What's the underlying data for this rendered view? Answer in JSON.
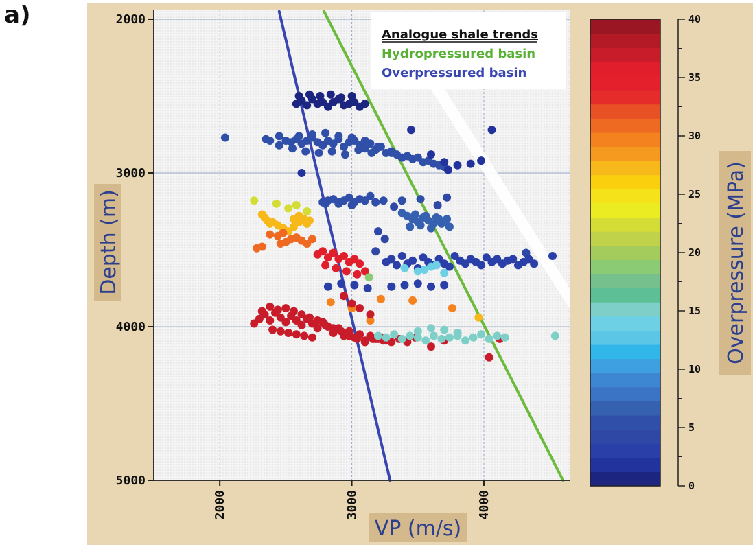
{
  "panel_label": "a)",
  "chart_data": {
    "type": "scatter",
    "title": "",
    "xlabel": "VP (m/s)",
    "ylabel": "Depth (m)",
    "xlim": [
      1500,
      4650
    ],
    "ylim": [
      5000,
      2000
    ],
    "x_ticks": [
      2000,
      3000,
      4000
    ],
    "y_ticks": [
      2000,
      3000,
      4000,
      5000
    ],
    "x_tick_labels": [
      "2000",
      "3000",
      "4000"
    ],
    "y_tick_labels": [
      "2000",
      "3000",
      "4000",
      "5000"
    ],
    "grid": true,
    "legend": {
      "placement": "top-center",
      "title": "Analogue shale trends",
      "entries": [
        {
          "name": "Hydropressured basin",
          "color": "#6dbb3c"
        },
        {
          "name": "Overpressured basin",
          "color": "#3a46b0"
        }
      ]
    },
    "trend_lines": [
      {
        "name": "Hydropressured basin",
        "color": "#6dbb3c",
        "points": [
          [
            2790,
            1950
          ],
          [
            4600,
            5000
          ]
        ]
      },
      {
        "name": "Overpressured basin",
        "color": "#3a46b0",
        "points": [
          [
            2450,
            1950
          ],
          [
            3290,
            5000
          ]
        ]
      }
    ],
    "colorbar": {
      "label": "Overpressure (MPa)",
      "min": 0,
      "max": 40,
      "ticks": [
        0,
        5,
        10,
        15,
        20,
        25,
        30,
        35,
        40
      ],
      "tick_labels": [
        "0",
        "5",
        "10",
        "15",
        "20",
        "25",
        "30",
        "35",
        "40"
      ],
      "colors": [
        "#1c2580",
        "#22339e",
        "#2b3fa8",
        "#2f48a6",
        "#304fa8",
        "#3660b0",
        "#3b74c4",
        "#3d86d2",
        "#3ea0e0",
        "#31b6ea",
        "#5bc6e6",
        "#6dd0e4",
        "#7ecfc8",
        "#5cbf96",
        "#76c08e",
        "#8acb74",
        "#a4cc5c",
        "#c0d24a",
        "#d4dc36",
        "#ecec22",
        "#f6e21a",
        "#fad00e",
        "#f7b81a",
        "#f59a1f",
        "#f3821f",
        "#ee6a22",
        "#e85026",
        "#e62c2a",
        "#e4202c",
        "#e01e2c",
        "#c81c2a",
        "#b41a26",
        "#9a1622"
      ]
    },
    "series": [
      {
        "name": "Depth ~2550 m cluster",
        "overpressure": 1,
        "x": [
          2580,
          2620,
          2660,
          2700,
          2740,
          2780,
          2820,
          2860,
          2900,
          2940,
          2980,
          3020,
          3060,
          3100,
          2600,
          2680,
          2760,
          2840,
          2920,
          3000
        ],
        "y": [
          2550,
          2530,
          2560,
          2520,
          2550,
          2540,
          2570,
          2540,
          2520,
          2560,
          2550,
          2540,
          2570,
          2550,
          2500,
          2490,
          2500,
          2490,
          2510,
          2500
        ]
      },
      {
        "name": "Depth ~2800 m cluster",
        "overpressure": 5,
        "x": [
          2040,
          2350,
          2380,
          2450,
          2500,
          2540,
          2580,
          2620,
          2660,
          2700,
          2740,
          2780,
          2820,
          2860,
          2900,
          2940,
          2980,
          3020,
          3060,
          3100,
          3140,
          3180,
          3220,
          3260,
          3300,
          3340,
          3380,
          3420,
          3460,
          3500,
          3540,
          3580,
          3620,
          3660,
          3700,
          2600,
          2700,
          2800,
          2900,
          3000,
          3100,
          3200,
          3300,
          2450,
          2550,
          2650,
          2750,
          2850,
          2950,
          3050,
          3150
        ],
        "y": [
          2770,
          2780,
          2790,
          2760,
          2790,
          2800,
          2780,
          2810,
          2790,
          2770,
          2800,
          2820,
          2790,
          2810,
          2780,
          2830,
          2800,
          2790,
          2820,
          2840,
          2810,
          2850,
          2830,
          2870,
          2860,
          2880,
          2900,
          2890,
          2910,
          2900,
          2930,
          2920,
          2940,
          2950,
          2960,
          2760,
          2750,
          2740,
          2760,
          2770,
          2790,
          2830,
          2870,
          2820,
          2840,
          2860,
          2870,
          2860,
          2880,
          2850,
          2870
        ]
      },
      {
        "name": "Deep blue scatter",
        "overpressure": 2,
        "x": [
          3450,
          3800,
          3900,
          3980,
          4060,
          3600,
          3700,
          2620,
          3730
        ],
        "y": [
          2720,
          2950,
          2940,
          2920,
          2720,
          2880,
          2930,
          3000,
          2980
        ]
      },
      {
        "name": "Depth ~3170 m cluster",
        "overpressure": 6,
        "x": [
          2780,
          2820,
          2860,
          2900,
          2940,
          2980,
          3020,
          3060,
          3100,
          3140,
          3180,
          2800,
          2900,
          3000,
          3100,
          3240,
          3380,
          3520
        ],
        "y": [
          3190,
          3180,
          3170,
          3190,
          3180,
          3160,
          3190,
          3170,
          3180,
          3150,
          3190,
          3200,
          3200,
          3210,
          3180,
          3180,
          3180,
          3170
        ]
      },
      {
        "name": "Mid-depth blue patch",
        "overpressure": 7,
        "x": [
          3420,
          3460,
          3500,
          3540,
          3580,
          3620,
          3660,
          3700,
          3440,
          3520,
          3600,
          3680,
          3740,
          3380,
          3480,
          3560,
          3640,
          3720
        ],
        "y": [
          3280,
          3300,
          3320,
          3290,
          3310,
          3330,
          3300,
          3320,
          3350,
          3340,
          3360,
          3330,
          3350,
          3260,
          3270,
          3280,
          3290,
          3300
        ]
      },
      {
        "name": "Scattered blue points",
        "overpressure": 4,
        "x": [
          3720,
          3320,
          3200,
          4320,
          3650,
          3180,
          3250
        ],
        "y": [
          3160,
          3220,
          3380,
          3520,
          3210,
          3510,
          3430
        ]
      },
      {
        "name": "Yellow-green",
        "overpressure": 22,
        "x": [
          2260,
          2430,
          2520,
          2580,
          2660
        ],
        "y": [
          3180,
          3200,
          3230,
          3210,
          3250
        ]
      },
      {
        "name": "Yellow",
        "overpressure": 27,
        "x": [
          2320,
          2340,
          2360,
          2380,
          2400,
          2440,
          2480,
          2520,
          2560,
          2600,
          2640,
          2660,
          2680,
          2600,
          2560
        ],
        "y": [
          3270,
          3290,
          3310,
          3330,
          3320,
          3340,
          3360,
          3380,
          3350,
          3320,
          3300,
          3330,
          3310,
          3280,
          3300
        ]
      },
      {
        "name": "Orange",
        "overpressure": 31,
        "x": [
          2280,
          2320,
          2460,
          2500,
          2540,
          2580,
          2620,
          2660,
          2700,
          2380,
          2440,
          2480
        ],
        "y": [
          3490,
          3480,
          3460,
          3450,
          3430,
          3420,
          3440,
          3460,
          3430,
          3400,
          3410,
          3390
        ]
      },
      {
        "name": "Red ~3550",
        "overpressure": 36,
        "x": [
          2740,
          2780,
          2820,
          2860,
          2900,
          2940,
          2980,
          3020,
          3060,
          2800,
          2880,
          2960,
          3040,
          3100
        ],
        "y": [
          3530,
          3510,
          3550,
          3520,
          3560,
          3540,
          3580,
          3560,
          3590,
          3600,
          3620,
          3640,
          3660,
          3640
        ]
      },
      {
        "name": "Dark blue ~3600",
        "overpressure": 3,
        "x": [
          3260,
          3300,
          3340,
          3380,
          3420,
          3460,
          3500,
          3540,
          3580,
          3620,
          3660,
          3700,
          3740,
          3780,
          3820,
          3860,
          3900,
          3940,
          3980,
          4020,
          4060,
          4100,
          4140,
          4180,
          4220,
          4260,
          4300,
          4340,
          4380,
          4520,
          3300,
          3400,
          3500,
          3600,
          3700,
          2820,
          2920,
          3020,
          3120
        ],
        "y": [
          3580,
          3560,
          3600,
          3540,
          3590,
          3570,
          3620,
          3550,
          3580,
          3600,
          3560,
          3590,
          3610,
          3540,
          3570,
          3590,
          3560,
          3580,
          3600,
          3550,
          3580,
          3560,
          3590,
          3570,
          3560,
          3600,
          3580,
          3560,
          3590,
          3540,
          3740,
          3730,
          3720,
          3740,
          3730,
          3740,
          3720,
          3730,
          3750
        ]
      },
      {
        "name": "Light blue ~3600",
        "overpressure": 14,
        "x": [
          3400,
          3500,
          3600,
          3700,
          3550,
          3640
        ],
        "y": [
          3620,
          3640,
          3610,
          3650,
          3630,
          3600
        ]
      },
      {
        "name": "Scattered orange",
        "overpressure": 30,
        "x": [
          2840,
          3000,
          3220,
          3460,
          3760,
          3140
        ],
        "y": [
          3840,
          3880,
          3820,
          3830,
          3880,
          3960
        ]
      },
      {
        "name": "Green point",
        "overpressure": 19,
        "x": [
          3130
        ],
        "y": [
          3680
        ]
      },
      {
        "name": "Red ~4000",
        "overpressure": 37,
        "x": [
          2260,
          2300,
          2340,
          2380,
          2420,
          2460,
          2500,
          2540,
          2580,
          2620,
          2660,
          2700,
          2740,
          2780,
          2820,
          2860,
          2900,
          2940,
          2980,
          3020,
          3060,
          3100,
          3140,
          3180,
          3220,
          3260,
          2320,
          2380,
          2440,
          2500,
          2560,
          2620,
          2680,
          2740,
          2800,
          2860,
          2920,
          2980,
          3040,
          3100,
          3160,
          2400,
          2460,
          2520,
          2580,
          2640,
          2700,
          2940,
          3000,
          3060,
          3140,
          3200,
          3240,
          3300,
          3360,
          3420,
          3480,
          4040,
          4120,
          3600,
          3700
        ],
        "y": [
          3980,
          3950,
          3920,
          3960,
          3910,
          3940,
          3970,
          3930,
          3960,
          3990,
          3950,
          3980,
          4010,
          3970,
          4000,
          4040,
          4010,
          4060,
          4030,
          4070,
          4050,
          4090,
          4060,
          4080,
          4070,
          4090,
          3900,
          3870,
          3890,
          3880,
          3900,
          3920,
          3940,
          3960,
          3990,
          4010,
          4030,
          4060,
          4080,
          4100,
          4080,
          4020,
          4030,
          4040,
          4050,
          4060,
          4070,
          3800,
          3850,
          3880,
          3920,
          4080,
          4090,
          4100,
          4080,
          4100,
          4070,
          4200,
          4080,
          4130,
          4090
        ]
      },
      {
        "name": "Light blue ~4070",
        "overpressure": 15,
        "x": [
          3200,
          3260,
          3320,
          3380,
          3440,
          3500,
          3560,
          3620,
          3680,
          3740,
          3800,
          3860,
          3920,
          3980,
          4040,
          4100,
          4160,
          4540,
          3500,
          3600,
          3700,
          3800
        ],
        "y": [
          4060,
          4070,
          4050,
          4080,
          4060,
          4070,
          4090,
          4060,
          4080,
          4070,
          4060,
          4090,
          4070,
          4050,
          4080,
          4060,
          4070,
          4060,
          4030,
          4010,
          4020,
          4040
        ]
      },
      {
        "name": "Yellow point",
        "overpressure": 27,
        "x": [
          3960
        ],
        "y": [
          3940
        ]
      }
    ]
  }
}
